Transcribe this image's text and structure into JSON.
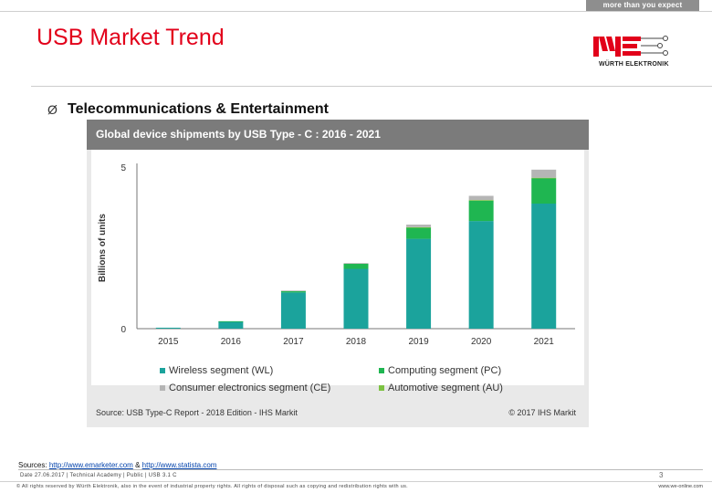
{
  "header": {
    "tagline": "more than you expect",
    "title": "USB Market Trend",
    "logo_text": "WÜRTH ELEKTRONIK",
    "bullet_glyph": "Ø",
    "bullet_text": "Telecommunications & Entertainment"
  },
  "colors": {
    "title": "#e2001a",
    "wireless": "#1ba39c",
    "computing": "#1fb651",
    "consumer": "#b5b5b5",
    "automotive": "#7cc242"
  },
  "chart_data": {
    "type": "bar",
    "stacked": true,
    "title": "Global device shipments by USB Type - C : 2016 - 2021",
    "ylabel": "Billions of units",
    "ylim": [
      0,
      5
    ],
    "yticks": [
      "0",
      "5"
    ],
    "categories": [
      "2015",
      "2016",
      "2017",
      "2018",
      "2019",
      "2020",
      "2021"
    ],
    "series": [
      {
        "name": "Wireless segment (WL)",
        "color": "#1ba39c",
        "values": [
          0.03,
          0.22,
          1.12,
          1.85,
          2.78,
          3.33,
          3.87
        ]
      },
      {
        "name": "Computing segment (PC)",
        "color": "#1fb651",
        "values": [
          0.0,
          0.01,
          0.05,
          0.16,
          0.35,
          0.63,
          0.78
        ]
      },
      {
        "name": "Automotive segment (AU)",
        "color": "#7cc242",
        "values": [
          0.0,
          0.0,
          0.0,
          0.0,
          0.01,
          0.02,
          0.02
        ]
      },
      {
        "name": "Consumer electronics segment (CE)",
        "color": "#b5b5b5",
        "values": [
          0.0,
          0.0,
          0.01,
          0.02,
          0.08,
          0.13,
          0.25
        ]
      }
    ],
    "legend": {
      "placement": "bottom",
      "items": [
        {
          "label": "Wireless segment (WL)",
          "color": "#1ba39c"
        },
        {
          "label": "Computing segment (PC)",
          "color": "#1fb651"
        },
        {
          "label": "Consumer electronics segment (CE)",
          "color": "#b5b5b5"
        },
        {
          "label": "Automotive segment (AU)",
          "color": "#7cc242"
        }
      ]
    },
    "source": "Source: USB Type-C Report - 2018 Edition - IHS Markit",
    "copyright": "© 2017 IHS Markit"
  },
  "sources": {
    "prefix": "Sources:",
    "link1": "http://www.emarketer.com",
    "separator": "&",
    "link2": "http://www.statista.com"
  },
  "footer": {
    "meta": "Date 27.06.2017 | Technical Academy | Public | USB 3.1 C",
    "page_number": "3",
    "legal": "© All rights reserved by Würth Elektronik, also in the event of industrial property rights. All rights of disposal such as copying and redistribution rights with us.",
    "website": "www.we-online.com"
  }
}
